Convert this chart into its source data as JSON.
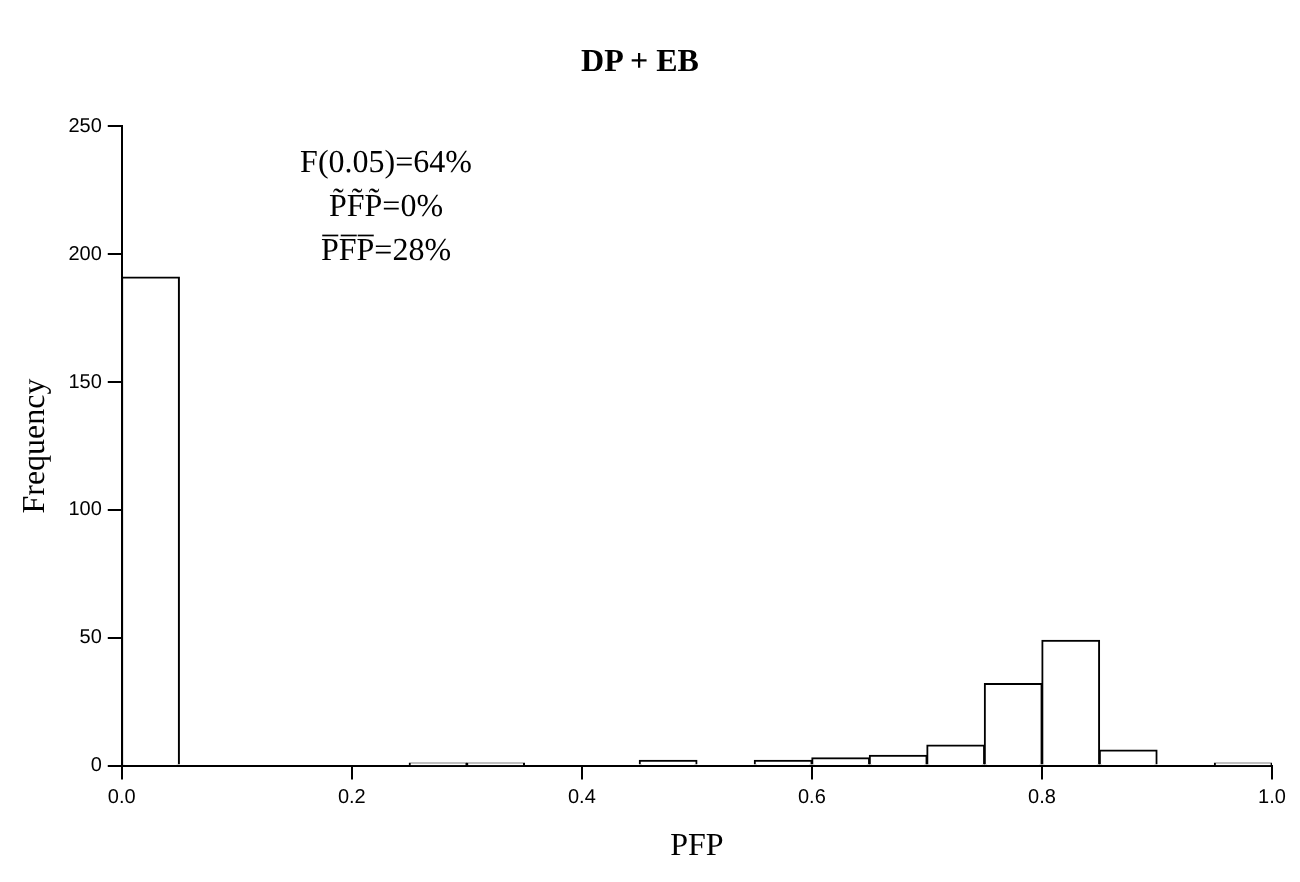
{
  "chart_data": {
    "type": "histogram",
    "title": "DP + EB",
    "xlabel": "PFP",
    "ylabel": "Frequency",
    "bins": [
      0,
      0.05,
      0.1,
      0.15,
      0.2,
      0.25,
      0.3,
      0.35,
      0.4,
      0.45,
      0.5,
      0.55,
      0.6,
      0.65,
      0.7,
      0.75,
      0.8,
      0.85,
      0.9,
      0.95,
      1.0
    ],
    "values": [
      191,
      0,
      0,
      0,
      0,
      1,
      1,
      0,
      0,
      2,
      0,
      2,
      3,
      4,
      8,
      32,
      49,
      6,
      0,
      1
    ],
    "color": "#ffffff",
    "xlim": [
      0,
      1
    ],
    "xticks": [
      {
        "value": 0,
        "label": "0.0"
      },
      0.2,
      0.4,
      0.6,
      0.8,
      {
        "value": 1,
        "label": "1.0"
      }
    ],
    "ylim": [
      0,
      250
    ],
    "yticks": [
      0,
      50,
      100,
      150,
      200,
      250
    ],
    "grid": false,
    "legend": false,
    "annotations": [
      "F(0.05)=64%",
      "P̃F̃P̃=0%",
      "P̅F̅P̅=28%"
    ]
  }
}
